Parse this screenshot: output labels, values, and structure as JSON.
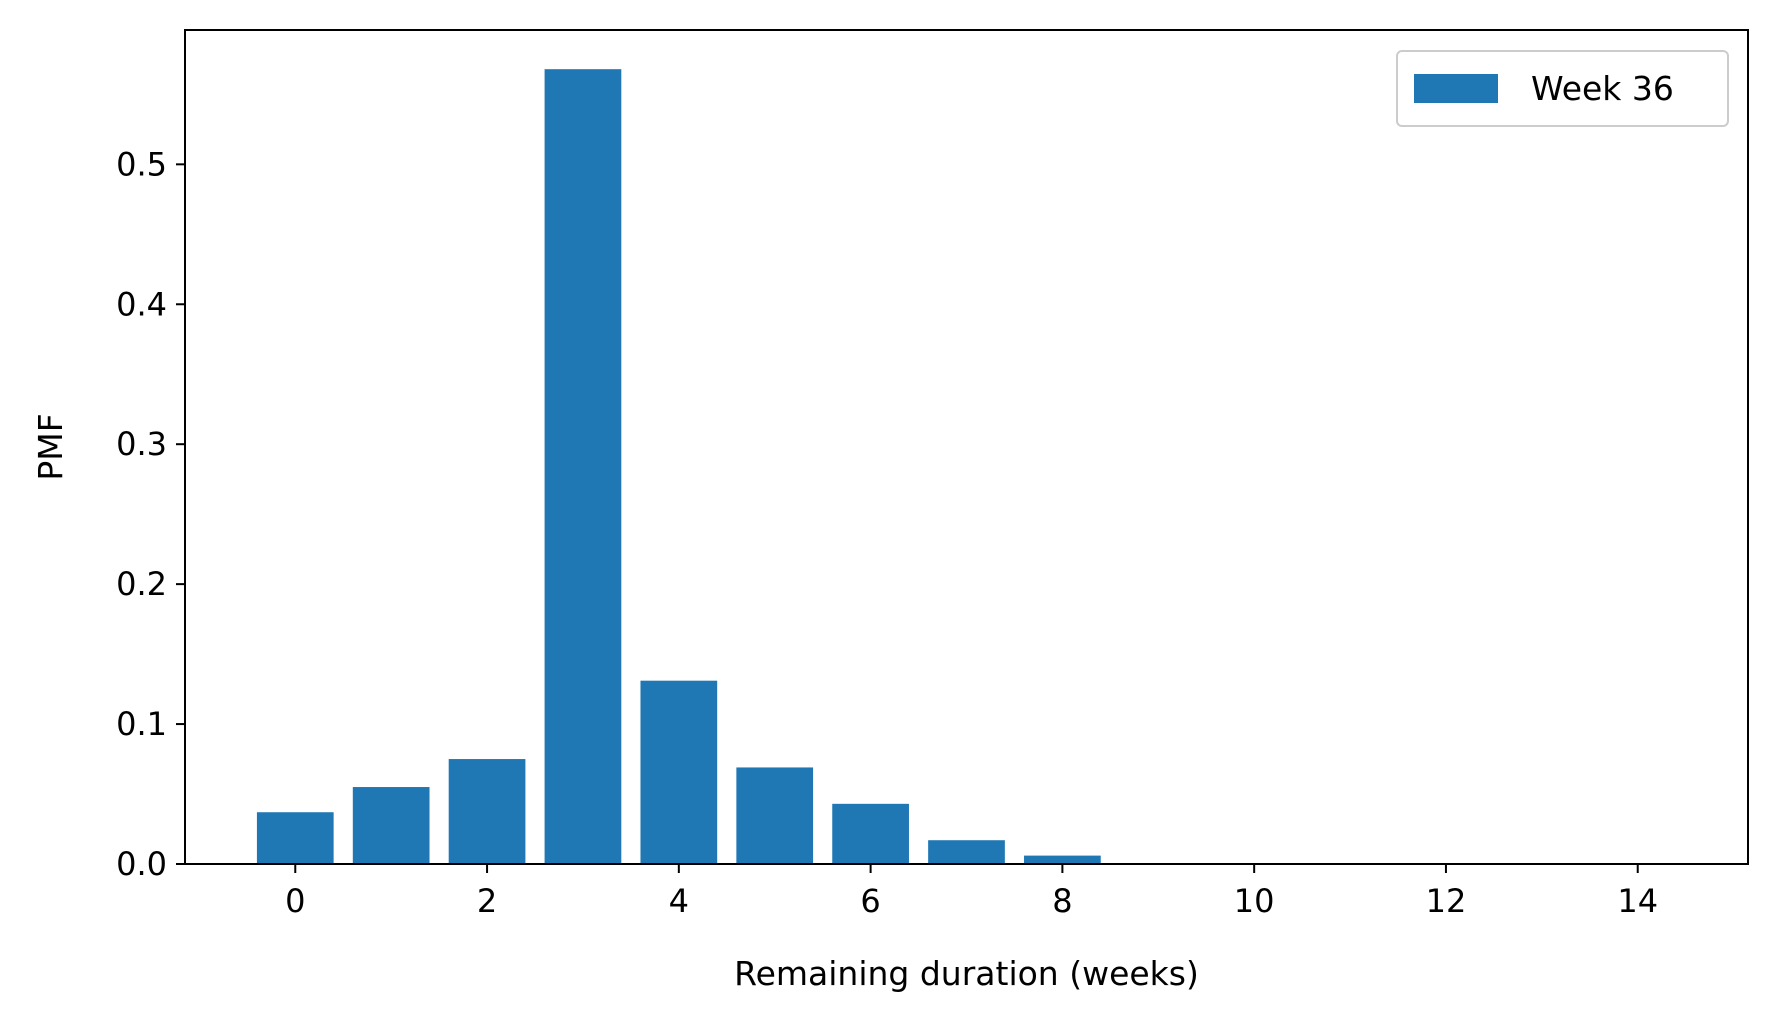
{
  "chart_data": {
    "type": "bar",
    "x": [
      0,
      1,
      2,
      3,
      4,
      5,
      6,
      7,
      8,
      9,
      10,
      11,
      12,
      13,
      14
    ],
    "series": [
      {
        "name": "Week 36",
        "values": [
          0.037,
          0.055,
          0.075,
          0.568,
          0.131,
          0.069,
          0.043,
          0.017,
          0.006,
          0.0005,
          0.0002,
          0.0001,
          0.0,
          0.0,
          0.0
        ],
        "color": "#1f77b4"
      }
    ],
    "bar_width": 0.8,
    "xlabel": "Remaining duration (weeks)",
    "ylabel": "PMF",
    "xlim": [
      -1.15,
      15.15
    ],
    "ylim": [
      0.0,
      0.596
    ],
    "xticks": [
      0,
      2,
      4,
      6,
      8,
      10,
      12,
      14
    ],
    "xtick_labels": [
      "0",
      "2",
      "4",
      "6",
      "8",
      "10",
      "12",
      "14"
    ],
    "yticks": [
      0.0,
      0.1,
      0.2,
      0.3,
      0.4,
      0.5
    ],
    "ytick_labels": [
      "0.0",
      "0.1",
      "0.2",
      "0.3",
      "0.4",
      "0.5"
    ],
    "grid": false,
    "legend_position": "top-right"
  }
}
